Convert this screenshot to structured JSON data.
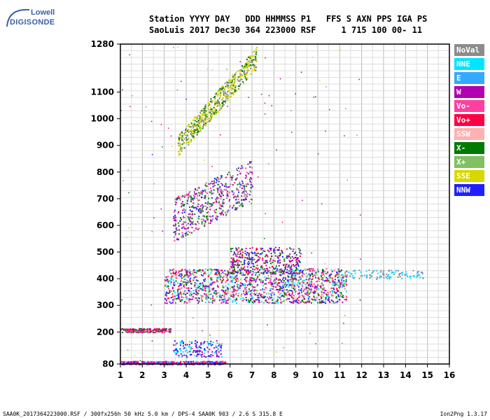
{
  "logo": {
    "top": "Lowell",
    "main": "DIGISONDE"
  },
  "header": {
    "line1": "Station YYYY DAY   DDD HHMMSS P1   FFS S AXN PPS IGA PS",
    "line2": "SaoLuis 2017 Dec30 364 223000 RSF     1 715 100 00- 11"
  },
  "legend": [
    {
      "label": "NoVal",
      "color": "#8c8c8c"
    },
    {
      "label": "NNE",
      "color": "#00e5ff"
    },
    {
      "label": "E",
      "color": "#33aaff"
    },
    {
      "label": "W",
      "color": "#b000b0"
    },
    {
      "label": "Vo-",
      "color": "#ff3fa0"
    },
    {
      "label": "Vo+",
      "color": "#ff0044"
    },
    {
      "label": "SSW",
      "color": "#ffb0b0"
    },
    {
      "label": "X-",
      "color": "#007a00"
    },
    {
      "label": "X+",
      "color": "#80c060"
    },
    {
      "label": "SSE",
      "color": "#d8d800"
    },
    {
      "label": "NNW",
      "color": "#2020ff"
    }
  ],
  "footer": {
    "left": "SAA0K_2017364223000.RSF / 300fx256h 50 kHz 5.0 km / DPS-4 SAA0K 903 / 2.6 S 315.8 E",
    "right": "Ion2Png 1.3.17"
  },
  "chart_data": {
    "type": "scatter",
    "x_range": [
      1,
      16
    ],
    "y_range": [
      80,
      1280
    ],
    "x_ticks": [
      1,
      2,
      3,
      4,
      5,
      6,
      7,
      8,
      9,
      10,
      11,
      12,
      13,
      14,
      15,
      16
    ],
    "y_ticks": [
      80,
      200,
      300,
      400,
      500,
      600,
      700,
      800,
      900,
      1000,
      1100,
      1280
    ],
    "grid": true,
    "legend_position": "right",
    "clusters": [
      {
        "name": "F-layer trace",
        "x": [
          3.0,
          11.3
        ],
        "y": [
          310,
          440
        ],
        "colors": [
          "#ff0044",
          "#ff3fa0",
          "#b000b0",
          "#2020ff",
          "#007a00",
          "#80c060",
          "#00e5ff"
        ],
        "count": 1500
      },
      {
        "name": "F-layer spread",
        "x": [
          6.0,
          9.2
        ],
        "y": [
          420,
          520
        ],
        "colors": [
          "#b000b0",
          "#ff0044",
          "#007a00",
          "#2020ff"
        ],
        "count": 350
      },
      {
        "name": "F-layer extension",
        "x": [
          11.3,
          14.8
        ],
        "y": [
          400,
          435
        ],
        "colors": [
          "#00e5ff",
          "#33aaff",
          "#8c8c8c"
        ],
        "count": 110
      },
      {
        "name": "E-region low echoes",
        "x": [
          1.0,
          5.8
        ],
        "y": [
          80,
          92
        ],
        "colors": [
          "#ff0044",
          "#ff3fa0",
          "#b000b0",
          "#2020ff",
          "#33aaff"
        ],
        "count": 420
      },
      {
        "name": "Es echoes",
        "x": [
          1.0,
          3.3
        ],
        "y": [
          200,
          215
        ],
        "colors": [
          "#ff0044",
          "#ff3fa0",
          "#b000b0",
          "#007a00"
        ],
        "count": 200
      },
      {
        "name": "Low blue echoes",
        "x": [
          3.4,
          5.6
        ],
        "y": [
          108,
          170
        ],
        "colors": [
          "#2020ff",
          "#b000b0",
          "#00e5ff"
        ],
        "count": 160
      },
      {
        "name": "Multi-hop trace",
        "x": [
          3.4,
          7.0
        ],
        "y": [
          580,
          870
        ],
        "colors": [
          "#8c8c8c",
          "#007a00",
          "#b000b0",
          "#ff3fa0",
          "#2020ff"
        ],
        "count": 550
      },
      {
        "name": "SSE oblique trace",
        "x": [
          3.6,
          7.2
        ],
        "y": [
          870,
          1280
        ],
        "colors": [
          "#d8d800",
          "#c8c800",
          "#8c8c8c",
          "#007a00"
        ],
        "count": 600
      }
    ],
    "sparse": [
      {
        "x": [
          1.0,
          12.0
        ],
        "y": [
          80,
          1280
        ],
        "colors": [
          "#8c8c8c",
          "#007a00",
          "#b000b0",
          "#2020ff",
          "#ff0044",
          "#d8d800"
        ],
        "count": 120
      }
    ]
  }
}
